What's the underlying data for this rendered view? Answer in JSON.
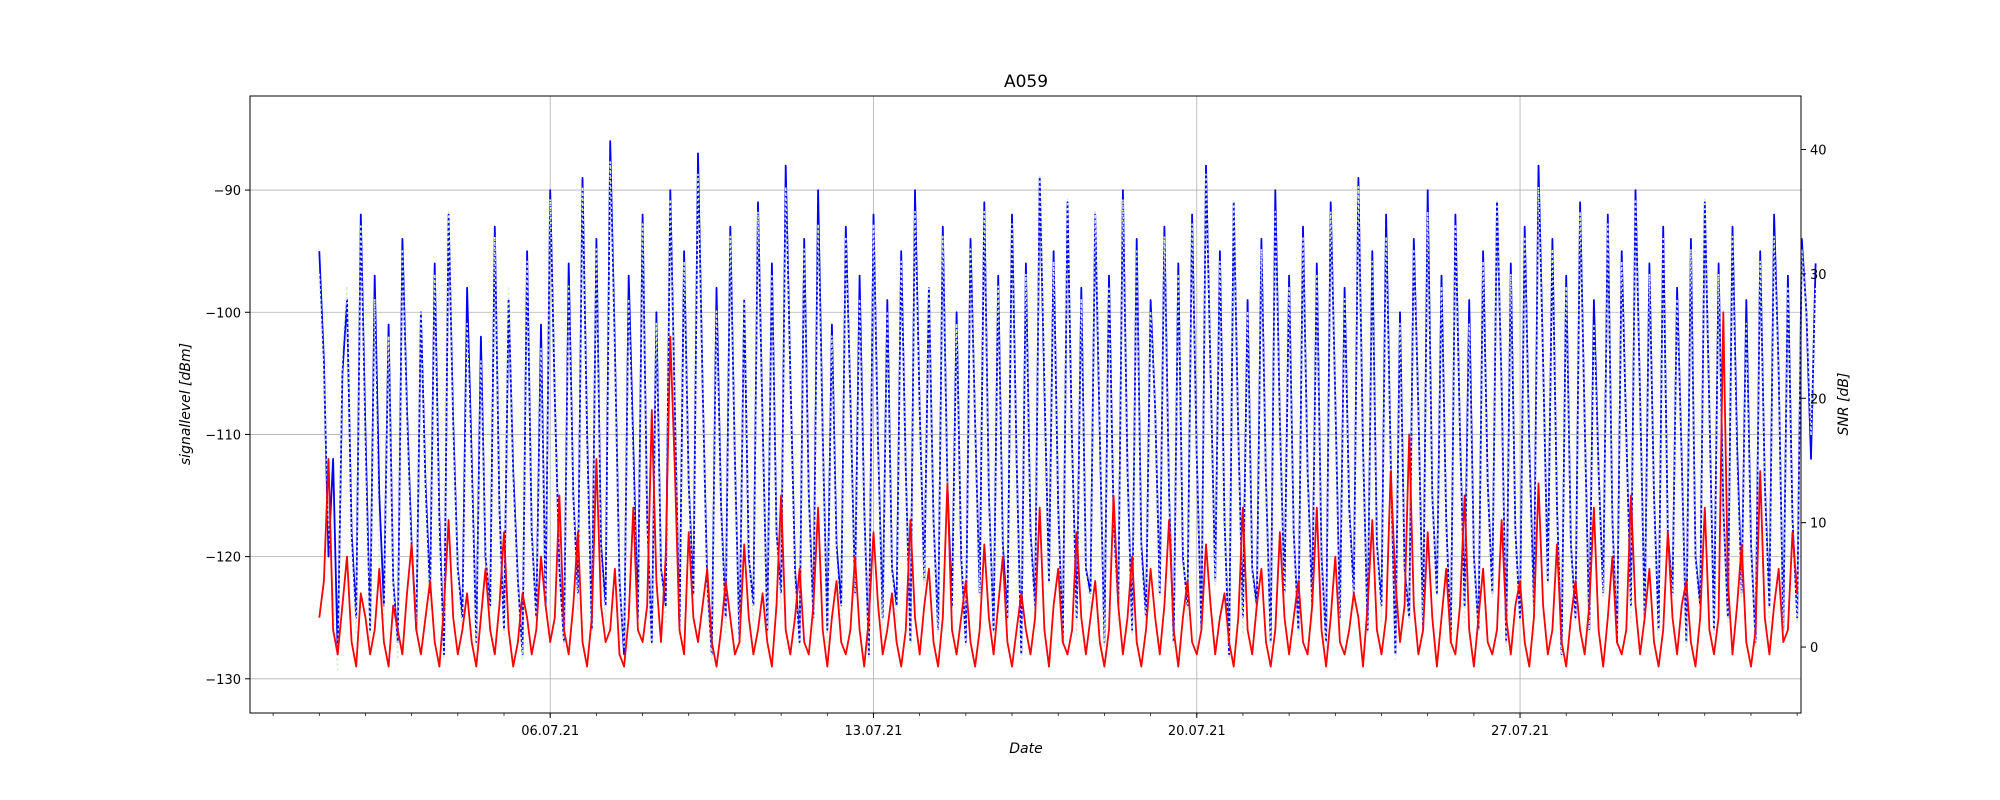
{
  "chart_data": {
    "type": "line",
    "title": "A059",
    "xlabel": "Date",
    "ylabel": "signallevel [dBm]",
    "y2label": "SNR [dB]",
    "x_tick_labels": [
      "06.07.21",
      "13.07.21",
      "20.07.21",
      "27.07.21"
    ],
    "x_tick_dates": [
      "2021-07-06",
      "2021-07-13",
      "2021-07-20",
      "2021-07-27"
    ],
    "xlim": [
      "2021-06-29T12:00",
      "2021-08-02T02:00"
    ],
    "data_range": [
      "2021-07-01",
      "2021-08-01"
    ],
    "ylim": [
      -132.8,
      -82.3
    ],
    "y_ticks": [
      -130,
      -120,
      -110,
      -100,
      -90
    ],
    "y2lim": [
      -5.3,
      44.3
    ],
    "y2_ticks": [
      0,
      10,
      20,
      30,
      40
    ],
    "grid": true,
    "series": [
      {
        "axis": "left",
        "color": "#0000ff",
        "style": "solid",
        "points_per_day": 10,
        "values": [
          -95,
          -104,
          -120,
          -112,
          -128,
          -105,
          -99,
          -118,
          -125,
          -92,
          -110,
          -126,
          -97,
          -115,
          -124,
          -101,
          -122,
          -127,
          -94,
          -108,
          -119,
          -126,
          -100,
          -114,
          -123,
          -96,
          -117,
          -128,
          -92,
          -109,
          -121,
          -125,
          -98,
          -112,
          -127,
          -102,
          -120,
          -124,
          -93,
          -116,
          -126,
          -99,
          -113,
          -122,
          -128,
          -95,
          -118,
          -125,
          -101,
          -124,
          -90,
          -107,
          -121,
          -127,
          -96,
          -115,
          -123,
          -89,
          -110,
          -126,
          -94,
          -119,
          -124,
          -86,
          -103,
          -122,
          -128,
          -97,
          -111,
          -125,
          -92,
          -117,
          -127,
          -100,
          -121,
          -124,
          -90,
          -108,
          -126,
          -95,
          -114,
          -123,
          -87,
          -106,
          -122,
          -128,
          -98,
          -116,
          -125,
          -93,
          -112,
          -127,
          -99,
          -120,
          -124,
          -91,
          -109,
          -126,
          -96,
          -118,
          -123,
          -88,
          -105,
          -121,
          -127,
          -94,
          -115,
          -125,
          -90,
          -110,
          -126,
          -101,
          -119,
          -124,
          -93,
          -107,
          -123,
          -97,
          -116,
          -128,
          -92,
          -111,
          -125,
          -99,
          -121,
          -124,
          -95,
          -113,
          -127,
          -90,
          -108,
          -122,
          -98,
          -117,
          -126,
          -93,
          -114,
          -124,
          -100,
          -120,
          -127,
          -94,
          -109,
          -123,
          -91,
          -115,
          -126,
          -97,
          -119,
          -125,
          -92,
          -112,
          -128,
          -96,
          -118,
          -124,
          -89,
          -106,
          -122,
          -95,
          -116,
          -127,
          -91,
          -111,
          -125,
          -98,
          -121,
          -123,
          -92,
          -110,
          -127,
          -97,
          -117,
          -124,
          -90,
          -113,
          -126,
          -94,
          -119,
          -125,
          -99,
          -108,
          -123,
          -93,
          -115,
          -127,
          -96,
          -120,
          -124,
          -92,
          -112,
          -126,
          -88,
          -105,
          -122,
          -95,
          -117,
          -128,
          -91,
          -110,
          -125,
          -99,
          -121,
          -124,
          -94,
          -114,
          -127,
          -90,
          -109,
          -123,
          -97,
          -118,
          -126,
          -93,
          -113,
          -124,
          -96,
          -120,
          -127,
          -91,
          -107,
          -125,
          -98,
          -116,
          -123,
          -89,
          -111,
          -126,
          -95,
          -119,
          -124,
          -92,
          -112,
          -128,
          -100,
          -121,
          -125,
          -94,
          -108,
          -126,
          -90,
          -115,
          -123,
          -97,
          -117,
          -127,
          -92,
          -110,
          -124,
          -99,
          -120,
          -126,
          -95,
          -114,
          -123,
          -91,
          -106,
          -127,
          -96,
          -118,
          -125,
          -93,
          -111,
          -124,
          -88,
          -104,
          -122,
          -94,
          -116,
          -128,
          -97,
          -119,
          -125,
          -91,
          -109,
          -126,
          -99,
          -113,
          -123,
          -92,
          -117,
          -127,
          -95,
          -110,
          -124,
          -90,
          -107,
          -125,
          -96,
          -115,
          -126,
          -93,
          -118,
          -123,
          -98,
          -112,
          -127,
          -94,
          -120,
          -124,
          -91,
          -108,
          -126,
          -96,
          -116,
          -125,
          -93,
          -111,
          -123,
          -99,
          -119,
          -127,
          -95,
          -114,
          -124,
          -92,
          -105,
          -126,
          -97,
          -117,
          -125,
          -94,
          -100,
          -112,
          -96
        ]
      },
      {
        "axis": "right",
        "color": "#d9ead3",
        "style": "dotted",
        "points_per_day": 10,
        "values": [
          30,
          22,
          10,
          4,
          -2,
          24,
          29,
          8,
          1,
          34,
          15,
          0,
          28,
          6,
          2,
          25,
          5,
          -1,
          32,
          18,
          7,
          2,
          27,
          12,
          3,
          30,
          9,
          -1,
          35,
          17,
          6,
          1,
          26,
          14,
          0,
          23,
          8,
          2,
          33,
          11,
          1,
          29,
          13,
          5,
          -1,
          31,
          9,
          2,
          24,
          4,
          36,
          20,
          6,
          0,
          29,
          12,
          3,
          37,
          16,
          1,
          32,
          7,
          2,
          39,
          23,
          5,
          0,
          28,
          14,
          1,
          34,
          10,
          0,
          26,
          6,
          2,
          36,
          19,
          1,
          31,
          13,
          3,
          38,
          21,
          4,
          -1,
          27,
          11,
          1,
          33,
          15,
          0,
          28,
          8,
          2,
          35,
          18,
          1,
          30,
          9,
          3,
          37,
          22,
          5,
          0,
          32,
          12,
          1,
          34,
          17,
          0,
          25,
          7,
          2,
          33,
          20,
          4,
          28,
          11,
          -1,
          34,
          16,
          1,
          27,
          6,
          2,
          31,
          14,
          0,
          35,
          19,
          5,
          29,
          10,
          1,
          33,
          13,
          2,
          26,
          8,
          0,
          32,
          18,
          4,
          35,
          12,
          1,
          29,
          7,
          2,
          34,
          15,
          -1,
          30,
          9,
          2,
          38,
          22,
          5,
          31,
          11,
          0,
          36,
          16,
          1,
          28,
          6,
          3,
          35,
          18,
          0,
          29,
          10,
          2,
          36,
          14,
          1,
          32,
          7,
          2,
          27,
          19,
          4,
          33,
          12,
          0,
          30,
          8,
          2,
          34,
          15,
          1,
          38,
          22,
          5,
          31,
          10,
          -1,
          36,
          17,
          1,
          27,
          6,
          2,
          32,
          13,
          0,
          35,
          18,
          4,
          29,
          9,
          1,
          33,
          14,
          2,
          30,
          7,
          0,
          35,
          20,
          1,
          28,
          11,
          3,
          37,
          16,
          1,
          31,
          8,
          2,
          33,
          15,
          -1,
          26,
          6,
          2,
          32,
          19,
          1,
          35,
          12,
          4,
          29,
          10,
          0,
          34,
          17,
          2,
          26,
          7,
          1,
          31,
          13,
          4,
          36,
          21,
          0,
          30,
          9,
          2,
          33,
          16,
          1,
          37,
          23,
          5,
          32,
          11,
          -1,
          29,
          8,
          2,
          35,
          18,
          1,
          26,
          14,
          4,
          34,
          10,
          0,
          31,
          17,
          2,
          36,
          20,
          2,
          30,
          12,
          1,
          33,
          9,
          4,
          28,
          15,
          0,
          32,
          7,
          2,
          36,
          19,
          1,
          30,
          11,
          2,
          33,
          14,
          4,
          26,
          8,
          0,
          31,
          13,
          2,
          33,
          22,
          1,
          29,
          10,
          2,
          32,
          27,
          17,
          29
        ]
      },
      {
        "axis": "left",
        "color": "#ff0000",
        "style": "solid",
        "points_per_day": 10,
        "values": [
          -125,
          -122,
          -112,
          -126,
          -128,
          -124,
          -120,
          -127,
          -129,
          -123,
          -125,
          -128,
          -126,
          -121,
          -127,
          -129,
          -124,
          -126,
          -128,
          -123,
          -119,
          -126,
          -128,
          -125,
          -122,
          -127,
          -129,
          -124,
          -117,
          -125,
          -128,
          -126,
          -123,
          -127,
          -129,
          -125,
          -121,
          -126,
          -128,
          -124,
          -118,
          -126,
          -129,
          -127,
          -123,
          -125,
          -128,
          -126,
          -120,
          -124,
          -127,
          -125,
          -115,
          -126,
          -128,
          -124,
          -118,
          -127,
          -129,
          -125,
          -112,
          -124,
          -127,
          -126,
          -121,
          -128,
          -129,
          -125,
          -116,
          -126,
          -127,
          -124,
          -108,
          -122,
          -127,
          -120,
          -102,
          -113,
          -126,
          -128,
          -118,
          -125,
          -127,
          -124,
          -121,
          -127,
          -129,
          -126,
          -122,
          -125,
          -128,
          -127,
          -119,
          -125,
          -128,
          -126,
          -123,
          -127,
          -129,
          -124,
          -115,
          -126,
          -128,
          -125,
          -121,
          -127,
          -128,
          -124,
          -116,
          -126,
          -129,
          -125,
          -122,
          -127,
          -128,
          -126,
          -120,
          -126,
          -129,
          -125,
          -118,
          -124,
          -128,
          -126,
          -123,
          -127,
          -129,
          -126,
          -117,
          -125,
          -128,
          -124,
          -121,
          -127,
          -129,
          -125,
          -114,
          -126,
          -128,
          -125,
          -122,
          -127,
          -129,
          -126,
          -119,
          -125,
          -128,
          -124,
          -120,
          -127,
          -129,
          -126,
          -123,
          -126,
          -128,
          -125,
          -116,
          -126,
          -129,
          -124,
          -121,
          -127,
          -128,
          -126,
          -118,
          -125,
          -128,
          -125,
          -122,
          -127,
          -129,
          -126,
          -115,
          -124,
          -128,
          -125,
          -120,
          -127,
          -129,
          -126,
          -121,
          -125,
          -128,
          -124,
          -117,
          -126,
          -129,
          -125,
          -122,
          -127,
          -128,
          -126,
          -119,
          -124,
          -128,
          -125,
          -123,
          -127,
          -129,
          -125,
          -116,
          -126,
          -128,
          -124,
          -121,
          -127,
          -129,
          -126,
          -118,
          -125,
          -128,
          -125,
          -122,
          -127,
          -128,
          -124,
          -116,
          -126,
          -129,
          -125,
          -120,
          -127,
          -128,
          -126,
          -123,
          -125,
          -129,
          -124,
          -117,
          -126,
          -128,
          -125,
          -113,
          -122,
          -127,
          -124,
          -110,
          -124,
          -128,
          -126,
          -118,
          -125,
          -129,
          -125,
          -121,
          -127,
          -128,
          -124,
          -115,
          -126,
          -129,
          -125,
          -121,
          -127,
          -128,
          -126,
          -117,
          -125,
          -128,
          -124,
          -122,
          -127,
          -129,
          -125,
          -114,
          -124,
          -128,
          -126,
          -119,
          -127,
          -129,
          -125,
          -122,
          -126,
          -128,
          -124,
          -116,
          -126,
          -129,
          -125,
          -120,
          -127,
          -128,
          -126,
          -115,
          -124,
          -128,
          -125,
          -121,
          -127,
          -129,
          -126,
          -118,
          -125,
          -128,
          -124,
          -122,
          -127,
          -129,
          -125,
          -116,
          -126,
          -128,
          -125,
          -100,
          -122,
          -128,
          -124,
          -119,
          -127,
          -129,
          -126,
          -113,
          -125,
          -128,
          -124,
          -121,
          -127,
          -126,
          -118,
          -123
        ]
      }
    ]
  }
}
